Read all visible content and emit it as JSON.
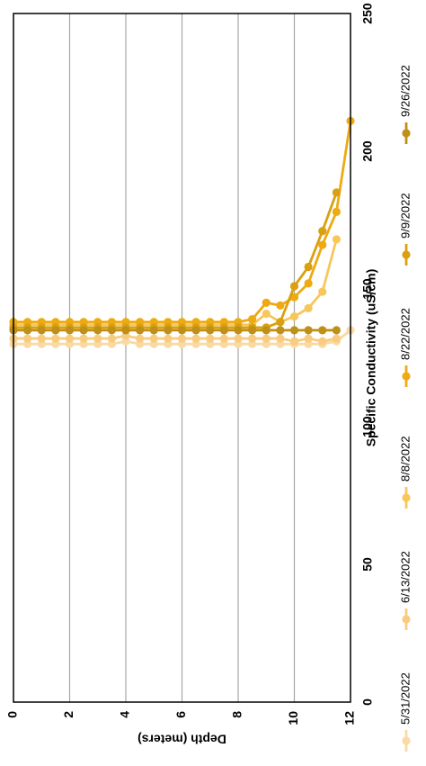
{
  "chart_data": {
    "type": "scatter",
    "orientation": "rotated-90-counterclockwise",
    "xlabel": "Specific Conductivity (uS/cm)",
    "ylabel": "Depth (meters)",
    "xlim": [
      0,
      250
    ],
    "ylim": [
      0,
      12
    ],
    "xticks": [
      0,
      50,
      100,
      150,
      200,
      250
    ],
    "yticks": [
      0,
      2,
      4,
      6,
      8,
      10,
      12
    ],
    "y_reversed": true,
    "grid": "horizontal-at-depth-ticks",
    "legend_position": "bottom",
    "series": [
      {
        "name": "5/31/2022",
        "color": "#fbd9a3",
        "points": [
          [
            130,
            0
          ],
          [
            130,
            0.5
          ],
          [
            130,
            1
          ],
          [
            130,
            1.5
          ],
          [
            130,
            2
          ],
          [
            130,
            2.5
          ],
          [
            130,
            3
          ],
          [
            130,
            3.5
          ],
          [
            131,
            4
          ],
          [
            130,
            4.5
          ],
          [
            130,
            5
          ],
          [
            130,
            5.5
          ],
          [
            130,
            6
          ],
          [
            130,
            6.5
          ],
          [
            130,
            7
          ],
          [
            130,
            7.5
          ],
          [
            130,
            8
          ],
          [
            130,
            8.5
          ],
          [
            130,
            9
          ],
          [
            130,
            9.5
          ],
          [
            130,
            10
          ],
          [
            130,
            10.5
          ],
          [
            130,
            11
          ],
          [
            131,
            11.5
          ],
          [
            135,
            12
          ]
        ]
      },
      {
        "name": "6/13/2022",
        "color": "#f8cc80",
        "points": [
          [
            132,
            0
          ],
          [
            132,
            0.5
          ],
          [
            132,
            1
          ],
          [
            132,
            1.5
          ],
          [
            132,
            2
          ],
          [
            132,
            2.5
          ],
          [
            132,
            3
          ],
          [
            132,
            3.5
          ],
          [
            133,
            4
          ],
          [
            132,
            4.5
          ],
          [
            132,
            5
          ],
          [
            132,
            5.5
          ],
          [
            132,
            6
          ],
          [
            132,
            6.5
          ],
          [
            132,
            7
          ],
          [
            132,
            7.5
          ],
          [
            132,
            8
          ],
          [
            132,
            8.5
          ],
          [
            132,
            9
          ],
          [
            132,
            9.5
          ],
          [
            131,
            10
          ],
          [
            132,
            10.5
          ],
          [
            131,
            11
          ],
          [
            132,
            11.5
          ]
        ]
      },
      {
        "name": "8/8/2022",
        "color": "#f7c75a",
        "points": [
          [
            137,
            0
          ],
          [
            137,
            0.5
          ],
          [
            137,
            1
          ],
          [
            137,
            1.5
          ],
          [
            137,
            2
          ],
          [
            137,
            2.5
          ],
          [
            137,
            3
          ],
          [
            137,
            3.5
          ],
          [
            137,
            4
          ],
          [
            137,
            4.5
          ],
          [
            137,
            5
          ],
          [
            137,
            5.5
          ],
          [
            137,
            6
          ],
          [
            137,
            6.5
          ],
          [
            137,
            7
          ],
          [
            137,
            7.5
          ],
          [
            137,
            8
          ],
          [
            137,
            8.5
          ],
          [
            141,
            9
          ],
          [
            138,
            9.5
          ],
          [
            140,
            10
          ],
          [
            143,
            10.5
          ],
          [
            149,
            11
          ],
          [
            168,
            11.5
          ]
        ]
      },
      {
        "name": "8/22/2022",
        "color": "#edaa12",
        "points": [
          [
            138,
            0
          ],
          [
            138,
            0.5
          ],
          [
            138,
            1
          ],
          [
            138,
            1.5
          ],
          [
            138,
            2
          ],
          [
            138,
            2.5
          ],
          [
            138,
            3
          ],
          [
            138,
            3.5
          ],
          [
            138,
            4
          ],
          [
            138,
            4.5
          ],
          [
            138,
            5
          ],
          [
            138,
            5.5
          ],
          [
            138,
            6
          ],
          [
            138,
            6.5
          ],
          [
            138,
            7
          ],
          [
            138,
            7.5
          ],
          [
            138,
            8
          ],
          [
            139,
            8.5
          ],
          [
            145,
            9
          ],
          [
            144,
            9.5
          ],
          [
            147,
            10
          ],
          [
            152,
            10.5
          ],
          [
            166,
            11
          ],
          [
            178,
            11.5
          ],
          [
            211,
            12
          ]
        ]
      },
      {
        "name": "9/9/2022",
        "color": "#d9a012",
        "points": [
          [
            136,
            0
          ],
          [
            136,
            0.5
          ],
          [
            136,
            1
          ],
          [
            136,
            1.5
          ],
          [
            136,
            2
          ],
          [
            136,
            2.5
          ],
          [
            136,
            3
          ],
          [
            136,
            3.5
          ],
          [
            136,
            4
          ],
          [
            136,
            4.5
          ],
          [
            136,
            5
          ],
          [
            136,
            5.5
          ],
          [
            136,
            6
          ],
          [
            136,
            6.5
          ],
          [
            136,
            7
          ],
          [
            136,
            7.5
          ],
          [
            136,
            8
          ],
          [
            136,
            8.5
          ],
          [
            136,
            9
          ],
          [
            138,
            9.5
          ],
          [
            151,
            10
          ],
          [
            158,
            10.5
          ],
          [
            171,
            11
          ],
          [
            185,
            11.5
          ]
        ]
      },
      {
        "name": "9/26/2022",
        "color": "#bf9017",
        "points": [
          [
            135,
            0
          ],
          [
            135,
            0.5
          ],
          [
            135,
            1
          ],
          [
            135,
            1.5
          ],
          [
            135,
            2
          ],
          [
            135,
            2.5
          ],
          [
            135,
            3
          ],
          [
            135,
            3.5
          ],
          [
            135,
            4
          ],
          [
            135,
            4.5
          ],
          [
            135,
            5
          ],
          [
            135,
            5.5
          ],
          [
            135,
            6
          ],
          [
            135,
            6.5
          ],
          [
            135,
            7
          ],
          [
            135,
            7.5
          ],
          [
            135,
            8
          ],
          [
            135,
            8.5
          ],
          [
            135,
            9
          ],
          [
            135,
            9.5
          ],
          [
            135,
            10
          ],
          [
            135,
            10.5
          ],
          [
            135,
            11
          ],
          [
            135,
            11.5
          ]
        ]
      }
    ]
  }
}
